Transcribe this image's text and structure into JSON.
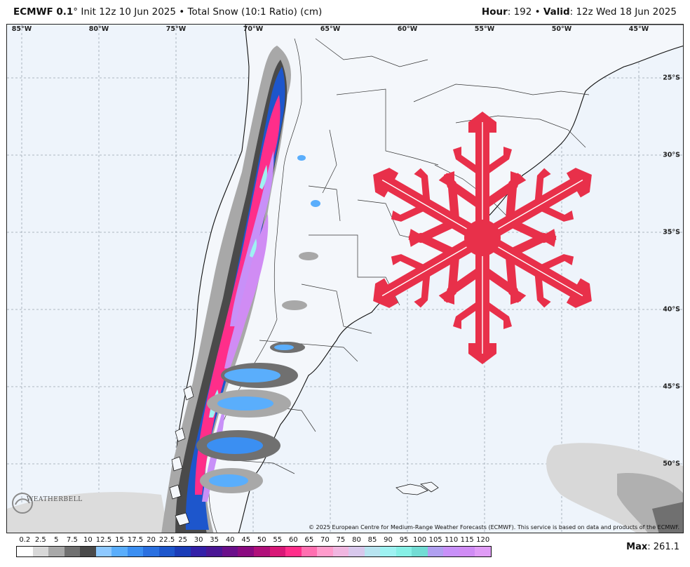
{
  "header": {
    "model": "ECMWF 0.1",
    "degree": "°",
    "init_text": " Init 12z 10 Jun 2025 • Total Snow (10:1 Ratio) (cm)",
    "hour_label": "Hour",
    "hour_value": ": 192 • ",
    "valid_label": "Valid",
    "valid_value": ": 12z Wed 18 Jun 2025"
  },
  "map": {
    "longitude_labels": [
      "85°W",
      "80°W",
      "75°W",
      "70°W",
      "65°W",
      "60°W",
      "55°W",
      "50°W",
      "45°W"
    ],
    "latitude_labels": [
      "25°S",
      "30°S",
      "35°S",
      "40°S",
      "45°S",
      "50°S"
    ],
    "copyright": "© 2025 European Centre for Medium-Range Weather Forecasts (ECMWF). This service is based on data and products of the ECMWF.",
    "watermark": "WEATHERBELL",
    "overlay_icon": "snowflake-icon",
    "snowflake_color": "#e8304a"
  },
  "legend": {
    "labels": [
      "0.2",
      "2.5",
      "5",
      "7.5",
      "10",
      "12.5",
      "15",
      "17.5",
      "20",
      "22.5",
      "25",
      "30",
      "35",
      "40",
      "45",
      "50",
      "55",
      "60",
      "65",
      "70",
      "75",
      "80",
      "85",
      "90",
      "95",
      "100",
      "105",
      "110",
      "115",
      "120"
    ],
    "colors": [
      "#ffffff",
      "#d8d8d8",
      "#a8a8a8",
      "#707070",
      "#4a4a4a",
      "#8ec9ff",
      "#5aaefc",
      "#3b8ff2",
      "#2a70e0",
      "#1d56cc",
      "#1a3cb8",
      "#3320a8",
      "#4a1694",
      "#6a0f8a",
      "#8a0a80",
      "#b0107a",
      "#d81877",
      "#ff2e8a",
      "#ff6fb0",
      "#ff9ccc",
      "#f0b6e0",
      "#d8c8ec",
      "#b8e4f0",
      "#9ef2f2",
      "#86f0e6",
      "#72dcd4",
      "#b0a0f0",
      "#c890f8",
      "#d08cf4",
      "#e09cf6"
    ]
  },
  "max": {
    "label": "Max",
    "value": ": 261.1"
  }
}
